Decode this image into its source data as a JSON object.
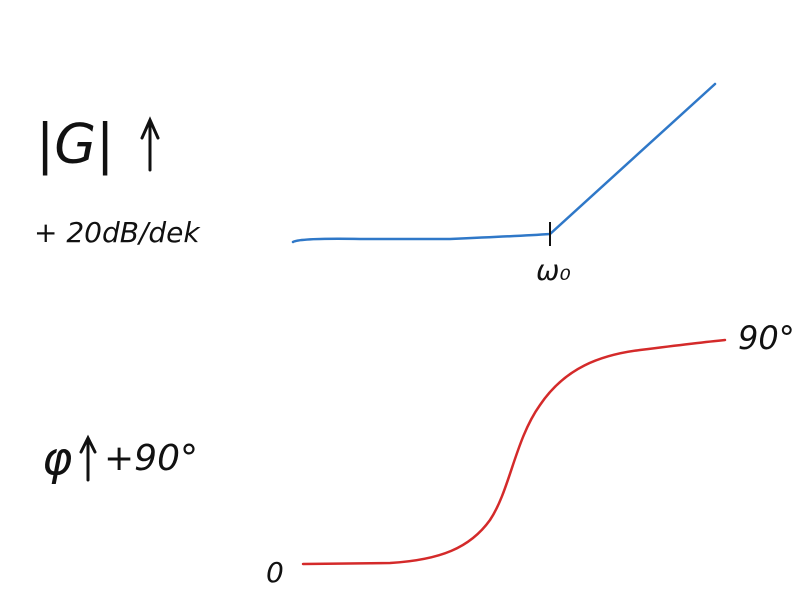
{
  "magnitude": {
    "label": "|G|",
    "slope": "+ 20dB/dek",
    "corner": "ω₀"
  },
  "phase": {
    "label": "φ",
    "shift": "+90°",
    "start": "0",
    "end": "90°"
  }
}
